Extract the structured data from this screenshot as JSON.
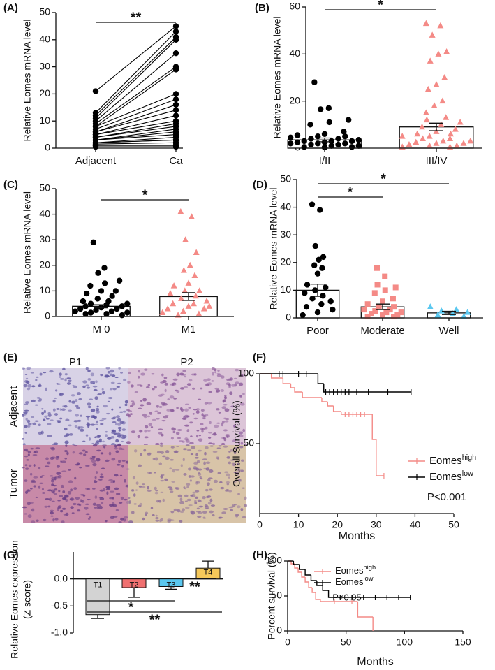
{
  "chart_data": [
    {
      "type": "paired",
      "panel_label": "(A)",
      "ylabel": "Relative Eomes mRNA level",
      "categories": [
        "Adjacent",
        "Ca"
      ],
      "points": [
        [
          21,
          13,
          12,
          11,
          10,
          9,
          8,
          8,
          7,
          6,
          6,
          5,
          5,
          4,
          4,
          3,
          3,
          3,
          2,
          2,
          2,
          1.5,
          1,
          1,
          0.5
        ],
        [
          45,
          43,
          41,
          40,
          35,
          30,
          29,
          20,
          18,
          16,
          14,
          12,
          10,
          9,
          8,
          7,
          6,
          5,
          4,
          3,
          3,
          2,
          1,
          1,
          0.5
        ]
      ],
      "color": "#000000",
      "ylim": [
        0,
        50
      ],
      "yticks": [
        0,
        10,
        20,
        30,
        40,
        50
      ],
      "annotations": [
        "**"
      ]
    },
    {
      "type": "dot_bar",
      "panel_label": "(B)",
      "ylabel": "Relative Eomes mRNA level",
      "categories": [
        "I/II",
        "III/IV"
      ],
      "values": [
        3.5,
        9
      ],
      "errors": [
        0.8,
        1.6
      ],
      "points": [
        [
          28,
          17,
          16.5,
          12,
          11,
          10,
          7,
          6,
          5.5,
          5,
          5,
          4.5,
          4,
          4,
          3.5,
          3,
          3,
          3,
          2.5,
          2.5,
          2,
          2,
          2,
          1.5,
          1.5,
          1,
          1,
          0.5,
          0.5,
          0.3
        ],
        [
          53,
          52,
          48,
          41,
          40,
          37,
          30,
          27,
          25,
          20,
          18,
          15,
          13,
          12,
          11,
          10,
          9,
          8,
          7,
          6,
          6,
          5,
          5,
          4,
          4,
          3,
          3,
          2.5,
          2,
          2,
          1.5,
          1,
          1,
          0.5,
          0.5
        ]
      ],
      "colors": [
        "#000000",
        "#f48a86"
      ],
      "markers": [
        "circle",
        "triangle"
      ],
      "ylim": [
        0,
        60
      ],
      "yticks": [
        0,
        20,
        40,
        60
      ],
      "annotations": [
        "*"
      ]
    },
    {
      "type": "dot_bar",
      "panel_label": "(C)",
      "ylabel": "Relative Eomes mRNA level",
      "categories": [
        "M 0",
        "M1"
      ],
      "values": [
        4,
        7.8
      ],
      "errors": [
        0.6,
        1.5
      ],
      "points": [
        [
          29,
          19,
          17,
          14,
          13,
          12,
          10,
          10,
          9,
          8,
          7,
          6,
          6,
          5,
          5,
          4.5,
          4,
          4,
          3.5,
          3,
          3,
          2.5,
          2,
          2,
          1.5,
          1.5,
          1,
          1,
          0.5
        ],
        [
          41,
          39,
          30,
          25,
          20,
          18,
          16,
          13,
          12,
          10,
          10,
          9,
          8,
          7,
          6,
          5,
          5,
          4,
          4,
          3,
          3,
          2,
          1.5,
          1,
          0.5
        ]
      ],
      "colors": [
        "#000000",
        "#f48a86"
      ],
      "markers": [
        "circle",
        "triangle"
      ],
      "ylim": [
        0,
        50
      ],
      "yticks": [
        0,
        10,
        20,
        30,
        40,
        50
      ],
      "annotations": [
        "*"
      ]
    },
    {
      "type": "dot_bar",
      "panel_label": "(D)",
      "ylabel": "Relative Eomes mRNA level",
      "categories": [
        "Poor",
        "Moderate",
        "Well"
      ],
      "values": [
        10,
        4,
        1.8
      ],
      "errors": [
        2.2,
        1,
        0.6
      ],
      "points": [
        [
          41,
          39,
          26,
          22,
          21,
          19,
          18,
          16,
          12,
          11,
          10,
          9,
          8,
          7,
          6,
          5,
          4,
          3,
          2,
          1
        ],
        [
          18,
          15,
          12,
          11,
          10,
          9,
          7,
          6,
          5,
          4,
          4,
          3,
          3,
          2.5,
          2,
          2,
          1.5,
          1,
          1,
          0.5,
          0.5
        ],
        [
          4,
          3,
          2.5,
          2,
          1.5,
          1,
          0.5
        ]
      ],
      "colors": [
        "#000000",
        "#f48a86",
        "#5bc8f0"
      ],
      "markers": [
        "circle",
        "square",
        "triangle"
      ],
      "ylim": [
        0,
        50
      ],
      "yticks": [
        0,
        10,
        20,
        30,
        40,
        50
      ],
      "annotations": [
        "*",
        "*"
      ]
    },
    {
      "type": "image",
      "panel_label": "(E)",
      "columns": [
        "P1",
        "P2"
      ],
      "rows": [
        "Adjacent",
        "Tumor"
      ]
    },
    {
      "type": "km",
      "panel_label": "(F)",
      "ylabel": "Overall Survival (%)",
      "xlabel": "Months",
      "xlim": [
        0,
        50
      ],
      "xticks": [
        0,
        10,
        20,
        30,
        40,
        50
      ],
      "ylim": [
        0,
        100
      ],
      "yticks": [
        50,
        100
      ],
      "series": [
        {
          "name": "Eomes",
          "name_sup": "high",
          "color": "#f48a86",
          "x": [
            0,
            3,
            6,
            8,
            9,
            11,
            16,
            17.5,
            19,
            21,
            29,
            30,
            32
          ],
          "values": [
            100,
            97,
            93,
            90,
            87,
            83,
            80,
            77,
            73,
            71,
            53,
            27,
            27
          ],
          "censor_x": [
            22,
            23,
            24,
            25,
            26,
            27,
            32
          ],
          "censor_y": [
            71,
            71,
            71,
            71,
            71,
            71,
            27
          ]
        },
        {
          "name": "Eomes",
          "name_sup": "low",
          "color": "#000000",
          "x": [
            0,
            15,
            16.5,
            39
          ],
          "values": [
            100,
            93,
            87,
            87
          ],
          "censor_x": [
            5,
            6,
            10,
            12,
            17,
            18,
            19,
            20,
            21,
            22,
            23,
            25,
            28,
            33,
            39
          ],
          "censor_y": [
            100,
            100,
            100,
            100,
            87,
            87,
            87,
            87,
            87,
            87,
            87,
            87,
            87,
            87,
            87
          ]
        }
      ],
      "annotations": [
        "P<0.001"
      ]
    },
    {
      "type": "bar",
      "panel_label": "(G)",
      "ylabel": [
        "Relative Eomes expression",
        "(Z score)"
      ],
      "categories": [
        "T1",
        "T2",
        "T3",
        "T4"
      ],
      "values": [
        -0.66,
        -0.16,
        -0.14,
        0.2
      ],
      "errors": [
        0.07,
        0.18,
        0.05,
        0.13
      ],
      "colors": [
        "#d3d3d3",
        "#f07070",
        "#5bc8f0",
        "#f5c85a"
      ],
      "ylim": [
        -1,
        0.5
      ],
      "yticks": [
        {
          "value": 0,
          "label": "0.0"
        },
        -0.5,
        {
          "value": -1,
          "label": "-1.0"
        }
      ],
      "annotations": [
        "*",
        "**",
        "**"
      ]
    },
    {
      "type": "km",
      "panel_label": "(H)",
      "ylabel": "Percent survival (%)",
      "xlabel": "Months",
      "xlim": [
        0,
        150
      ],
      "xticks": [
        0,
        50,
        100,
        150
      ],
      "ylim": [
        0,
        100
      ],
      "yticks": [
        0,
        50,
        100
      ],
      "series": [
        {
          "name": "Eomes",
          "name_sup": "high",
          "color": "#f48a86",
          "x": [
            0,
            3,
            6,
            9,
            12,
            15,
            18,
            21,
            24,
            28,
            60,
            73
          ],
          "values": [
            100,
            96,
            90,
            84,
            77,
            70,
            62,
            55,
            45,
            42,
            20,
            0
          ],
          "censor_x": [
            40,
            55
          ],
          "censor_y": [
            42,
            42
          ]
        },
        {
          "name": "Eomes",
          "name_sup": "low",
          "color": "#000000",
          "x": [
            0,
            5,
            10,
            15,
            20,
            25,
            30,
            35,
            105
          ],
          "values": [
            100,
            95,
            88,
            80,
            72,
            65,
            58,
            48,
            48
          ],
          "censor_x": [
            45,
            55,
            65,
            75,
            85,
            95,
            105
          ],
          "censor_y": [
            48,
            48,
            48,
            48,
            48,
            48,
            48
          ]
        }
      ],
      "annotations": [
        "P<0.05"
      ]
    }
  ]
}
